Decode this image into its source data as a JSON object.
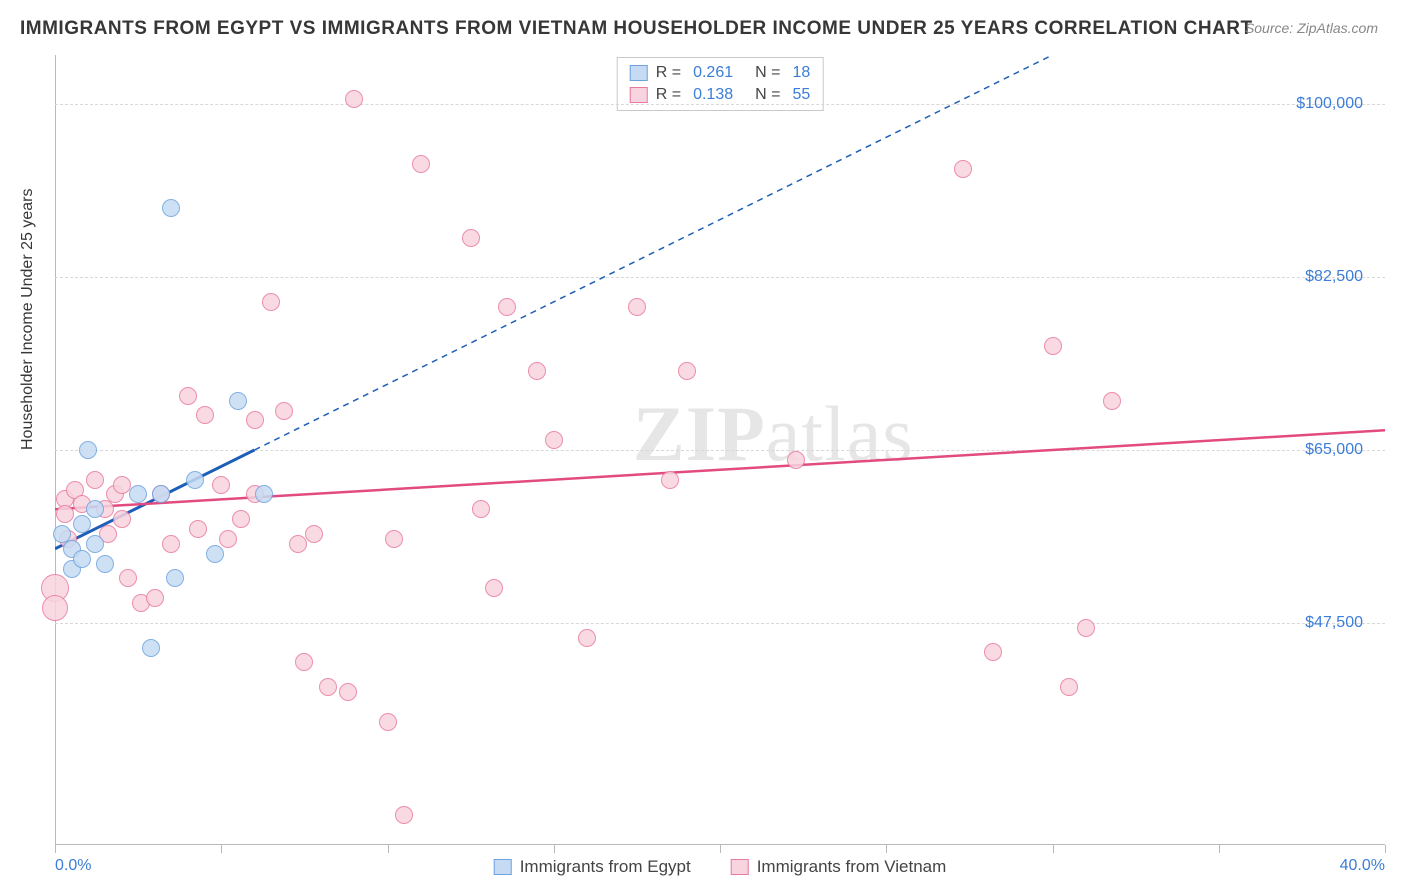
{
  "title": "IMMIGRANTS FROM EGYPT VS IMMIGRANTS FROM VIETNAM HOUSEHOLDER INCOME UNDER 25 YEARS CORRELATION CHART",
  "source": "Source: ZipAtlas.com",
  "watermark_a": "ZIP",
  "watermark_b": "atlas",
  "ylabel": "Householder Income Under 25 years",
  "chart": {
    "type": "scatter",
    "background_color": "#ffffff",
    "grid_color": "#d8d8d8",
    "axis_color": "#b9b9b9",
    "xlim": [
      0,
      40
    ],
    "ylim": [
      25000,
      105000
    ],
    "xtick_positions": [
      0,
      5,
      10,
      15,
      20,
      25,
      30,
      35,
      40
    ],
    "xlabel_start": "0.0%",
    "xlabel_end": "40.0%",
    "ytick_values": [
      47500,
      65000,
      82500,
      100000
    ],
    "ytick_labels": [
      "$47,500",
      "$65,000",
      "$82,500",
      "$100,000"
    ],
    "marker_radius": 9,
    "marker_border_width": 1.5,
    "series": [
      {
        "id": "egypt",
        "label": "Immigrants from Egypt",
        "R_label": "R =",
        "N_label": "N =",
        "R": "0.261",
        "N": "18",
        "fill": "#c6dbf3",
        "stroke": "#6ea3e0",
        "reg_color": "#1d5fb8",
        "reg_width_solid": 3,
        "reg_width_dash": 1.5,
        "reg_solid": {
          "x1": 0,
          "y1": 55000,
          "x2": 6,
          "y2": 65000
        },
        "reg_dash": {
          "x1": 6,
          "y1": 65000,
          "x2": 30,
          "y2": 105000
        },
        "points": [
          {
            "x": 0.2,
            "y": 56500
          },
          {
            "x": 0.5,
            "y": 55000
          },
          {
            "x": 0.5,
            "y": 53000
          },
          {
            "x": 0.8,
            "y": 57500
          },
          {
            "x": 0.8,
            "y": 54000
          },
          {
            "x": 1.0,
            "y": 65000
          },
          {
            "x": 1.2,
            "y": 59000
          },
          {
            "x": 1.2,
            "y": 55500
          },
          {
            "x": 1.5,
            "y": 53500
          },
          {
            "x": 2.5,
            "y": 60500
          },
          {
            "x": 2.9,
            "y": 45000
          },
          {
            "x": 3.2,
            "y": 60500
          },
          {
            "x": 3.5,
            "y": 89500
          },
          {
            "x": 3.6,
            "y": 52000
          },
          {
            "x": 4.2,
            "y": 62000
          },
          {
            "x": 4.8,
            "y": 54500
          },
          {
            "x": 5.5,
            "y": 70000
          },
          {
            "x": 6.3,
            "y": 60500
          }
        ]
      },
      {
        "id": "vietnam",
        "label": "Immigrants from Vietnam",
        "R_label": "R =",
        "N_label": "N =",
        "R": "0.138",
        "N": "55",
        "fill": "#f8d4de",
        "stroke": "#e97aa0",
        "reg_color": "#e24a80",
        "reg_width_solid": 2.5,
        "reg_width_dash": 1.5,
        "reg_solid": {
          "x1": 0,
          "y1": 59000,
          "x2": 40,
          "y2": 67000
        },
        "reg_dash": null,
        "points": [
          {
            "x": 0.0,
            "y": 51000,
            "r": 14
          },
          {
            "x": 0.0,
            "y": 49000,
            "r": 13
          },
          {
            "x": 0.3,
            "y": 60000
          },
          {
            "x": 0.3,
            "y": 58500
          },
          {
            "x": 0.4,
            "y": 56000
          },
          {
            "x": 0.6,
            "y": 61000
          },
          {
            "x": 0.8,
            "y": 59500
          },
          {
            "x": 1.2,
            "y": 62000
          },
          {
            "x": 1.5,
            "y": 59000
          },
          {
            "x": 1.8,
            "y": 60500
          },
          {
            "x": 1.6,
            "y": 56500
          },
          {
            "x": 2.0,
            "y": 61500
          },
          {
            "x": 2.0,
            "y": 58000
          },
          {
            "x": 2.2,
            "y": 52000
          },
          {
            "x": 2.6,
            "y": 49500
          },
          {
            "x": 3.0,
            "y": 50000
          },
          {
            "x": 3.2,
            "y": 60500
          },
          {
            "x": 3.5,
            "y": 55500
          },
          {
            "x": 4.0,
            "y": 70500
          },
          {
            "x": 4.3,
            "y": 57000
          },
          {
            "x": 4.5,
            "y": 68500
          },
          {
            "x": 5.0,
            "y": 61500
          },
          {
            "x": 5.2,
            "y": 56000
          },
          {
            "x": 5.6,
            "y": 58000
          },
          {
            "x": 6.0,
            "y": 68000
          },
          {
            "x": 6.0,
            "y": 60500
          },
          {
            "x": 6.5,
            "y": 80000
          },
          {
            "x": 6.9,
            "y": 69000
          },
          {
            "x": 7.3,
            "y": 55500
          },
          {
            "x": 7.5,
            "y": 43500
          },
          {
            "x": 7.8,
            "y": 56500
          },
          {
            "x": 8.2,
            "y": 41000
          },
          {
            "x": 8.8,
            "y": 40500
          },
          {
            "x": 9.0,
            "y": 100500
          },
          {
            "x": 10.0,
            "y": 37500
          },
          {
            "x": 10.2,
            "y": 56000
          },
          {
            "x": 10.5,
            "y": 28000
          },
          {
            "x": 11.0,
            "y": 94000
          },
          {
            "x": 12.5,
            "y": 86500
          },
          {
            "x": 12.8,
            "y": 59000
          },
          {
            "x": 13.2,
            "y": 51000
          },
          {
            "x": 13.6,
            "y": 79500
          },
          {
            "x": 14.5,
            "y": 73000
          },
          {
            "x": 15.0,
            "y": 66000
          },
          {
            "x": 16.0,
            "y": 46000
          },
          {
            "x": 17.5,
            "y": 79500
          },
          {
            "x": 18.5,
            "y": 62000
          },
          {
            "x": 19.0,
            "y": 73000
          },
          {
            "x": 22.3,
            "y": 64000
          },
          {
            "x": 27.3,
            "y": 93500
          },
          {
            "x": 28.2,
            "y": 44500
          },
          {
            "x": 30.0,
            "y": 75500
          },
          {
            "x": 30.5,
            "y": 41000
          },
          {
            "x": 31.0,
            "y": 47000
          },
          {
            "x": 31.8,
            "y": 70000
          }
        ]
      }
    ]
  }
}
